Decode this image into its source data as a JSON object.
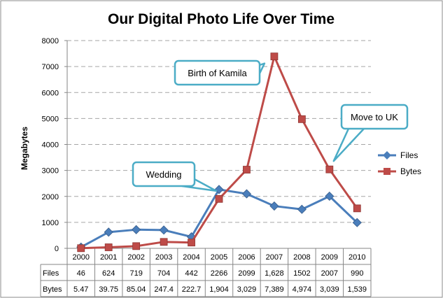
{
  "chart_data": {
    "type": "line",
    "title": "Our Digital Photo Life Over Time",
    "ylabel": "Megabytes",
    "xlabel": "",
    "ylim": [
      0,
      8000
    ],
    "y_ticks": [
      0,
      1000,
      2000,
      3000,
      4000,
      5000,
      6000,
      7000,
      8000
    ],
    "grid": "horizontal dashed",
    "legend_position": "right",
    "categories": [
      "2000",
      "2001",
      "2002",
      "2003",
      "2004",
      "2005",
      "2006",
      "2007",
      "2008",
      "2009",
      "2010"
    ],
    "series": [
      {
        "name": "Files",
        "color": "#4A7EBB",
        "marker": "diamond",
        "values": [
          46,
          624,
          719,
          704,
          442,
          2266,
          2099,
          1628,
          1502,
          2007,
          990
        ],
        "table_labels": [
          "46",
          "624",
          "719",
          "704",
          "442",
          "2266",
          "2099",
          "1,628",
          "1502",
          "2007",
          "990"
        ]
      },
      {
        "name": "Bytes",
        "color": "#BE4B48",
        "marker": "square",
        "values": [
          5.47,
          39.75,
          85.04,
          247.4,
          222.7,
          1904,
          3029,
          7389,
          4974,
          3039,
          1539
        ],
        "table_labels": [
          "5.47",
          "39.75",
          "85.04",
          "247.4",
          "222.7",
          "1,904",
          "3,029",
          "7,389",
          "4,974",
          "3,039",
          "1,539"
        ]
      }
    ],
    "annotations": [
      {
        "text": "Wedding",
        "category": "2005",
        "series": "Files"
      },
      {
        "text": "Birth of Kamila",
        "category": "2007",
        "series": "Bytes"
      },
      {
        "text": "Move to UK",
        "category": "2009",
        "series": "Bytes"
      }
    ]
  },
  "colors": {
    "callout_border": "#4BACC6",
    "grid": "#A6A6A6"
  }
}
